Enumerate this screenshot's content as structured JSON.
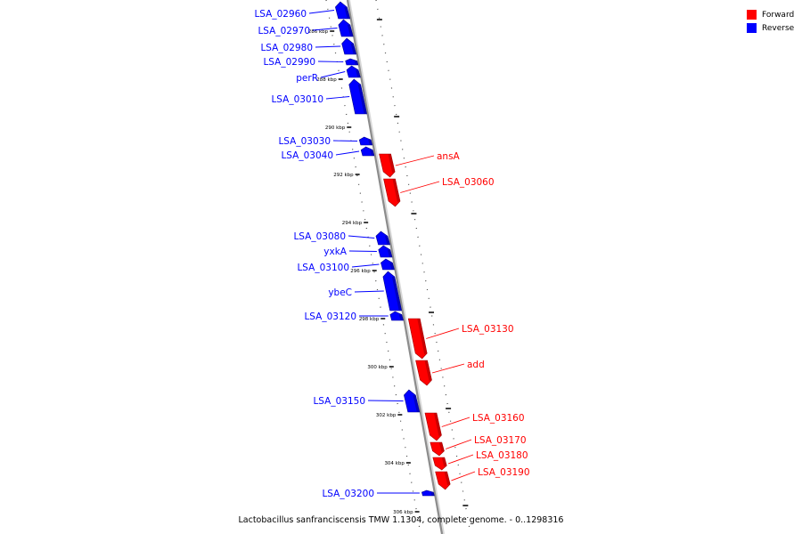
{
  "title": "Lactobacillus sanfranciscensis TMW 1.1304, complete genome. - 0..1298316",
  "legend": {
    "forward": {
      "label": "Forward",
      "color": "#ff0000"
    },
    "reverse": {
      "label": "Reverse",
      "color": "#0000ff"
    }
  },
  "ticks": [
    {
      "label": "286 kbp",
      "pos_kbp": 286
    },
    {
      "label": "288 kbp",
      "pos_kbp": 288
    },
    {
      "label": "290 kbp",
      "pos_kbp": 290
    },
    {
      "label": "292 kbp",
      "pos_kbp": 292
    },
    {
      "label": "294 kbp",
      "pos_kbp": 294
    },
    {
      "label": "296 kbp",
      "pos_kbp": 296
    },
    {
      "label": "298 kbp",
      "pos_kbp": 298
    },
    {
      "label": "300 kbp",
      "pos_kbp": 300
    },
    {
      "label": "302 kbp",
      "pos_kbp": 302
    },
    {
      "label": "304 kbp",
      "pos_kbp": 304
    },
    {
      "label": "306 kbp",
      "pos_kbp": 306
    }
  ],
  "genes": [
    {
      "name": "LSA_02960",
      "strand": "reverse"
    },
    {
      "name": "LSA_02970",
      "strand": "reverse"
    },
    {
      "name": "LSA_02980",
      "strand": "reverse"
    },
    {
      "name": "LSA_02990",
      "strand": "reverse"
    },
    {
      "name": "perR",
      "strand": "reverse"
    },
    {
      "name": "LSA_03010",
      "strand": "reverse"
    },
    {
      "name": "LSA_03030",
      "strand": "reverse"
    },
    {
      "name": "LSA_03040",
      "strand": "reverse"
    },
    {
      "name": "ansA",
      "strand": "forward"
    },
    {
      "name": "LSA_03060",
      "strand": "forward"
    },
    {
      "name": "LSA_03080",
      "strand": "reverse"
    },
    {
      "name": "yxkA",
      "strand": "reverse"
    },
    {
      "name": "LSA_03100",
      "strand": "reverse"
    },
    {
      "name": "ybeC",
      "strand": "reverse"
    },
    {
      "name": "LSA_03120",
      "strand": "reverse"
    },
    {
      "name": "LSA_03130",
      "strand": "forward"
    },
    {
      "name": "add",
      "strand": "forward"
    },
    {
      "name": "LSA_03150",
      "strand": "reverse"
    },
    {
      "name": "LSA_03160",
      "strand": "forward"
    },
    {
      "name": "LSA_03170",
      "strand": "forward"
    },
    {
      "name": "LSA_03180",
      "strand": "forward"
    },
    {
      "name": "LSA_03190",
      "strand": "forward"
    },
    {
      "name": "LSA_03200",
      "strand": "reverse"
    }
  ]
}
